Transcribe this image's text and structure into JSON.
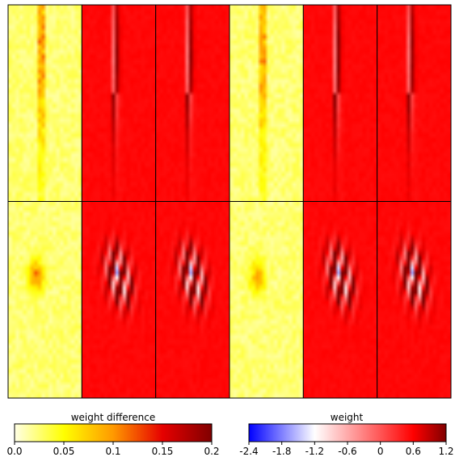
{
  "chart_data": {
    "type": "heatmap",
    "grid": {
      "rows": 2,
      "cols": 6
    },
    "panels": [
      {
        "row": 0,
        "col": 0,
        "colormap": "weight_difference",
        "pattern": "vertical-streak",
        "amplitude": 0.16
      },
      {
        "row": 0,
        "col": 1,
        "colormap": "weight",
        "pattern": "vertical-streak",
        "amplitude": 1.0
      },
      {
        "row": 0,
        "col": 2,
        "colormap": "weight",
        "pattern": "vertical-streak",
        "amplitude": 1.0
      },
      {
        "row": 0,
        "col": 3,
        "colormap": "weight_difference",
        "pattern": "vertical-streak",
        "amplitude": 0.14
      },
      {
        "row": 0,
        "col": 4,
        "colormap": "weight",
        "pattern": "vertical-streak",
        "amplitude": 1.1
      },
      {
        "row": 0,
        "col": 5,
        "colormap": "weight",
        "pattern": "vertical-streak",
        "amplitude": 1.0
      },
      {
        "row": 1,
        "col": 0,
        "colormap": "weight_difference",
        "pattern": "oriented-blob",
        "amplitude": 0.1
      },
      {
        "row": 1,
        "col": 1,
        "colormap": "weight",
        "pattern": "oriented-stripes",
        "amplitude": 1.2
      },
      {
        "row": 1,
        "col": 2,
        "colormap": "weight",
        "pattern": "oriented-stripes",
        "amplitude": 1.2
      },
      {
        "row": 1,
        "col": 3,
        "colormap": "weight_difference",
        "pattern": "oriented-blob",
        "amplitude": 0.08
      },
      {
        "row": 1,
        "col": 4,
        "colormap": "weight",
        "pattern": "oriented-stripes",
        "amplitude": 1.2
      },
      {
        "row": 1,
        "col": 5,
        "colormap": "weight",
        "pattern": "oriented-stripes",
        "amplitude": 1.2
      }
    ],
    "colorbars": [
      {
        "id": "weight_difference",
        "label": "weight difference",
        "range": [
          0,
          0.2
        ],
        "ticks": [
          "0.0",
          "0.05",
          "0.1",
          "0.15",
          "0.2"
        ],
        "tick_values": [
          0,
          0.05,
          0.1,
          0.15,
          0.2
        ],
        "colors": [
          "#ffffe6",
          "#ffff00",
          "#ff9900",
          "#e60000",
          "#800000"
        ]
      },
      {
        "id": "weight",
        "label": "weight",
        "range": [
          -2.4,
          1.2
        ],
        "ticks": [
          "-2.4",
          "-1.8",
          "-1.2",
          "-0.6",
          "0",
          "0.6",
          "1.2"
        ],
        "tick_values": [
          -2.4,
          -1.8,
          -1.2,
          -0.6,
          0,
          0.6,
          1.2
        ],
        "colors": [
          "#0000ff",
          "#ffffff",
          "#ff0000",
          "#800000"
        ],
        "color_stops": [
          -2.4,
          -1.2,
          0.6,
          1.2
        ]
      }
    ]
  }
}
